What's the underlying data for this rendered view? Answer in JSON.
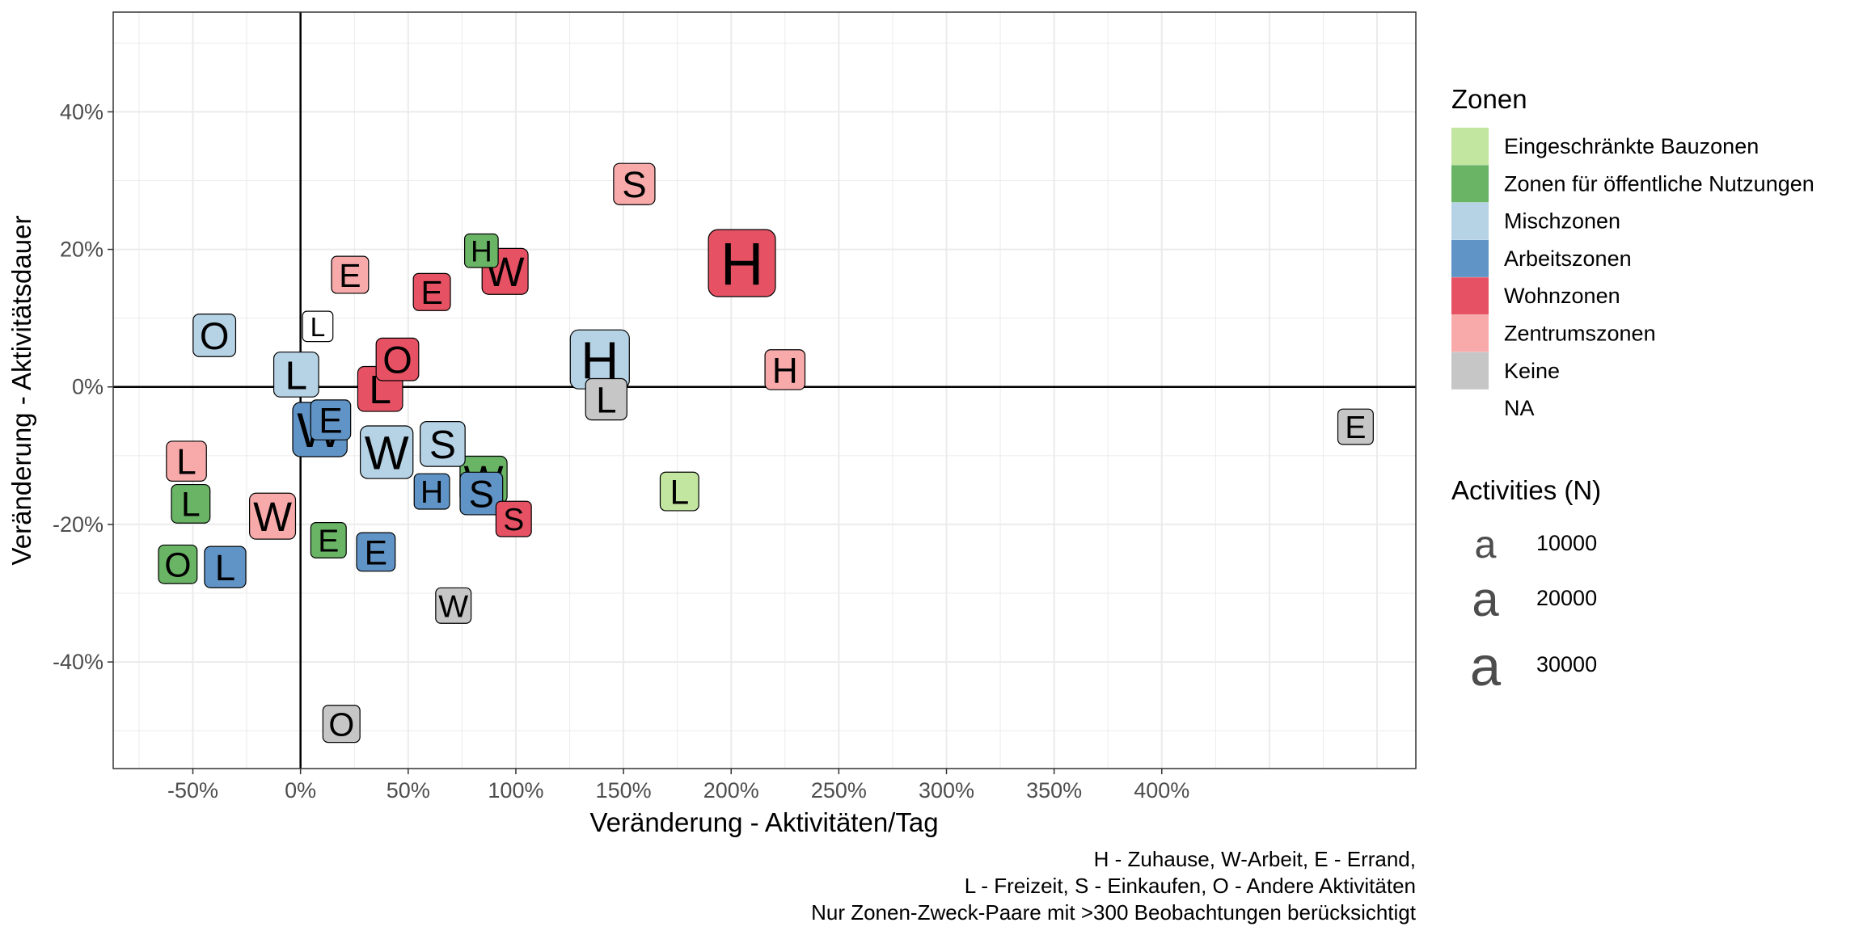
{
  "chart_data": {
    "type": "scatter",
    "xlabel": "Veränderung - Aktivitäten/Tag",
    "ylabel": "Veränderung - Aktivitätsdauer",
    "xlim": [
      -0.87,
      5.18
    ],
    "ylim": [
      -0.555,
      0.545
    ],
    "x_ticks": [
      -0.5,
      0,
      0.5,
      1,
      1.5,
      2,
      2.5,
      3,
      3.5,
      4
    ],
    "x_tick_labels": [
      "-50%",
      "0%",
      "50%",
      "100%",
      "150%",
      "200%",
      "250%",
      "300%",
      "350%",
      "400%"
    ],
    "y_ticks": [
      -0.4,
      -0.2,
      0,
      0.2,
      0.4
    ],
    "y_tick_labels": [
      "-40%",
      "-20%",
      "0%",
      "20%",
      "40%"
    ],
    "grid": true,
    "reference_lines": {
      "x": 0,
      "y": 0
    },
    "caption": [
      "H - Zuhause, W-Arbeit, E - Errand,",
      "L - Freizeit, S - Einkaufen, O - Andere Aktivitäten",
      "Nur Zonen-Zweck-Paare mit >300 Beobachtungen berücksichtigt"
    ],
    "legend": {
      "placement": "right",
      "fill_title": "Zonen",
      "fill": [
        {
          "label": "Eingeschränkte Bauzonen",
          "color": "#c2e59f"
        },
        {
          "label": "Zonen für öffentliche Nutzungen",
          "color": "#6ab466"
        },
        {
          "label": "Mischzonen",
          "color": "#b6d2e5"
        },
        {
          "label": "Arbeitszonen",
          "color": "#6194c6"
        },
        {
          "label": "Wohnzonen",
          "color": "#e65264"
        },
        {
          "label": "Zentrumszonen",
          "color": "#f8aaab"
        },
        {
          "label": "Keine",
          "color": "#c6c6c6"
        },
        {
          "label": "NA",
          "color": "#ffffff"
        }
      ],
      "size_title": "Activities (N)",
      "size": [
        {
          "label": "10000",
          "value": 10000
        },
        {
          "label": "20000",
          "value": 20000
        },
        {
          "label": "30000",
          "value": 30000
        }
      ]
    },
    "points": [
      {
        "label": "H",
        "zone": "Wohnzonen",
        "x": 2.05,
        "y": 0.18,
        "n": 40000
      },
      {
        "label": "H",
        "zone": "Mischzonen",
        "x": 1.39,
        "y": 0.04,
        "n": 28000
      },
      {
        "label": "S",
        "zone": "Zentrumszonen",
        "x": 1.55,
        "y": 0.295,
        "n": 9000
      },
      {
        "label": "W",
        "zone": "Wohnzonen",
        "x": 0.95,
        "y": 0.168,
        "n": 13000
      },
      {
        "label": "H",
        "zone": "Zonen für öffentliche Nutzungen",
        "x": 0.84,
        "y": 0.198,
        "n": 4000
      },
      {
        "label": "E",
        "zone": "Wohnzonen",
        "x": 0.61,
        "y": 0.138,
        "n": 6000
      },
      {
        "label": "E",
        "zone": "Zentrumszonen",
        "x": 0.23,
        "y": 0.163,
        "n": 6000
      },
      {
        "label": "L",
        "zone": "NA",
        "x": 0.08,
        "y": 0.088,
        "n": 2500
      },
      {
        "label": "O",
        "zone": "Mischzonen",
        "x": -0.4,
        "y": 0.075,
        "n": 10000
      },
      {
        "label": "L",
        "zone": "Mischzonen",
        "x": -0.02,
        "y": 0.018,
        "n": 12000
      },
      {
        "label": "O",
        "zone": "Wohnzonen",
        "x": 0.45,
        "y": 0.04,
        "n": 10000
      },
      {
        "label": "L",
        "zone": "Wohnzonen",
        "x": 0.37,
        "y": -0.003,
        "n": 12000
      },
      {
        "label": "H",
        "zone": "Zentrumszonen",
        "x": 2.25,
        "y": 0.025,
        "n": 8000
      },
      {
        "label": "L",
        "zone": "Keine",
        "x": 1.42,
        "y": -0.018,
        "n": 9000
      },
      {
        "label": "E",
        "zone": "Keine",
        "x": 4.9,
        "y": -0.058,
        "n": 5000
      },
      {
        "label": "E",
        "zone": "Arbeitszonen",
        "x": 0.14,
        "y": -0.048,
        "n": 8000
      },
      {
        "label": "W",
        "zone": "Arbeitszonen",
        "x": 0.09,
        "y": -0.062,
        "n": 22000
      },
      {
        "label": "W",
        "zone": "Mischzonen",
        "x": 0.4,
        "y": -0.095,
        "n": 20000
      },
      {
        "label": "S",
        "zone": "Mischzonen",
        "x": 0.66,
        "y": -0.083,
        "n": 12000
      },
      {
        "label": "L",
        "zone": "Zentrumszonen",
        "x": -0.53,
        "y": -0.108,
        "n": 8000
      },
      {
        "label": "S",
        "zone": "Arbeitszonen",
        "x": 0.84,
        "y": -0.155,
        "n": 10000
      },
      {
        "label": "W",
        "zone": "Zonen für öffentliche Nutzungen",
        "x": 0.85,
        "y": -0.135,
        "n": 14000
      },
      {
        "label": "H",
        "zone": "Arbeitszonen",
        "x": 0.61,
        "y": -0.152,
        "n": 5000
      },
      {
        "label": "L",
        "zone": "Eingeschränkte Bauzonen",
        "x": 1.76,
        "y": -0.152,
        "n": 7000
      },
      {
        "label": "S",
        "zone": "Wohnzonen",
        "x": 0.99,
        "y": -0.192,
        "n": 5000
      },
      {
        "label": "L",
        "zone": "Zonen für öffentliche Nutzungen",
        "x": -0.51,
        "y": -0.17,
        "n": 7000
      },
      {
        "label": "W",
        "zone": "Zentrumszonen",
        "x": -0.13,
        "y": -0.188,
        "n": 13000
      },
      {
        "label": "E",
        "zone": "Zonen für öffentliche Nutzungen",
        "x": 0.13,
        "y": -0.223,
        "n": 5000
      },
      {
        "label": "E",
        "zone": "Arbeitszonen",
        "x": 0.35,
        "y": -0.24,
        "n": 7000
      },
      {
        "label": "O",
        "zone": "Zonen für öffentliche Nutzungen",
        "x": -0.57,
        "y": -0.258,
        "n": 7000
      },
      {
        "label": "L",
        "zone": "Arbeitszonen",
        "x": -0.35,
        "y": -0.262,
        "n": 9000
      },
      {
        "label": "W",
        "zone": "Keine",
        "x": 0.71,
        "y": -0.318,
        "n": 5000
      },
      {
        "label": "O",
        "zone": "Keine",
        "x": 0.19,
        "y": -0.49,
        "n": 6000
      }
    ]
  }
}
